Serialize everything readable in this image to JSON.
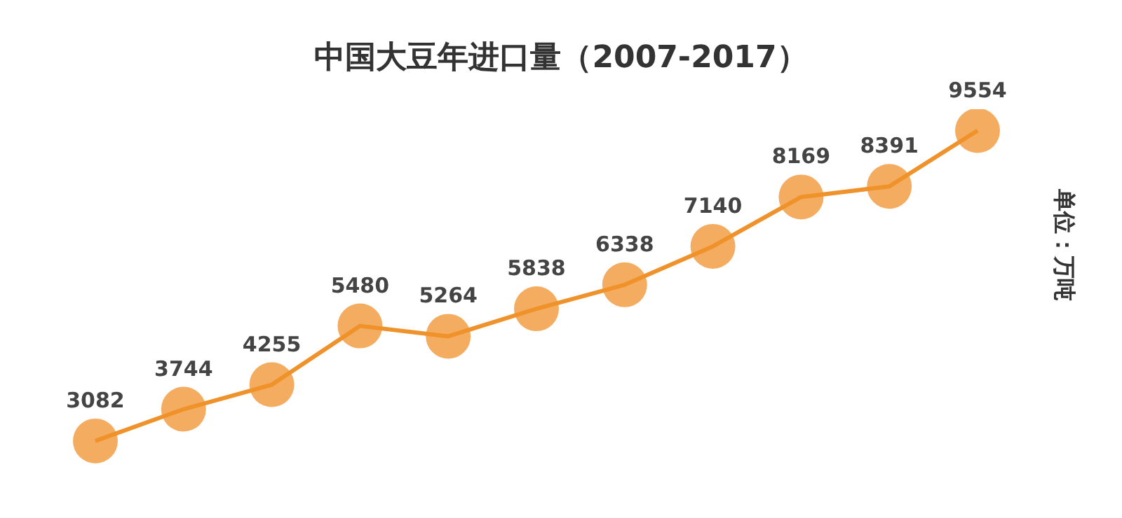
{
  "chart_data": {
    "type": "line",
    "title": "中国大豆年进口量（2007-2017）",
    "ylabel": "单位：万吨",
    "categories": [
      null,
      null,
      null,
      null,
      null,
      null,
      null,
      null,
      null,
      null,
      null
    ],
    "values": [
      3082,
      3744,
      4255,
      5480,
      5264,
      5838,
      6338,
      7140,
      8169,
      8391,
      9554
    ],
    "color": "#f0922b",
    "marker": "circle",
    "data_labels": true,
    "grid": false
  }
}
